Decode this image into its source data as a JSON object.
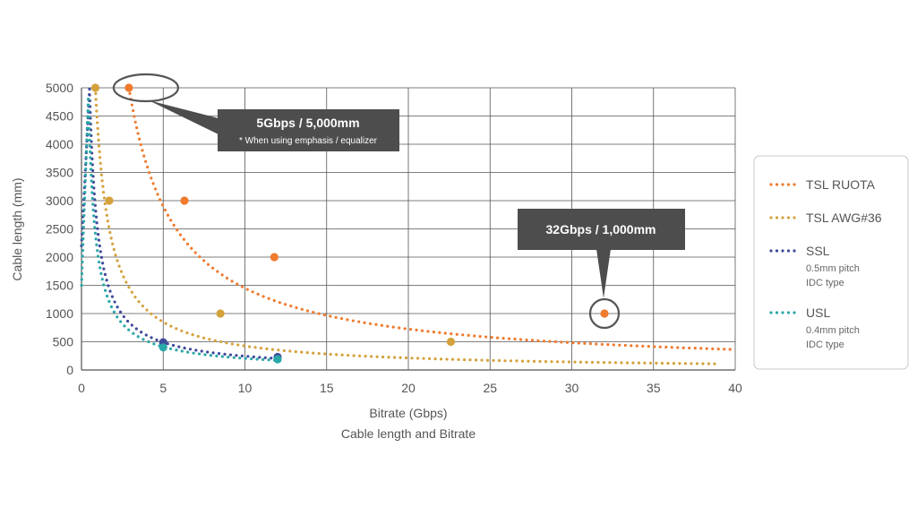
{
  "chart_data": {
    "type": "line",
    "title": "",
    "caption": "Cable length and Bitrate",
    "xlabel": "Bitrate (Gbps)",
    "ylabel": "Cable length (mm)",
    "xlim": [
      0,
      40
    ],
    "ylim": [
      0,
      5000
    ],
    "x_ticks": [
      0,
      5,
      10,
      15,
      20,
      25,
      30,
      35,
      40
    ],
    "y_ticks": [
      0,
      500,
      1000,
      1500,
      2000,
      2500,
      3000,
      3500,
      4000,
      4500,
      5000
    ],
    "grid": true,
    "legend_position": "right",
    "series": [
      {
        "name": "TSL RUOTA",
        "sublabel": [],
        "color": "#f07a2e",
        "style": "dotted",
        "curve_k": 14500,
        "x_range": [
          2.9,
          40
        ],
        "markers": [
          {
            "x": 2.9,
            "y": 5000
          },
          {
            "x": 6.3,
            "y": 3000
          },
          {
            "x": 11.8,
            "y": 2000
          },
          {
            "x": 32,
            "y": 1000
          }
        ]
      },
      {
        "name": "TSL AWG#36",
        "sublabel": [],
        "color": "#d4a23c",
        "style": "dotted",
        "curve_k": 4250,
        "x_range": [
          0.85,
          39
        ],
        "markers": [
          {
            "x": 0.85,
            "y": 5000
          },
          {
            "x": 1.7,
            "y": 3000
          },
          {
            "x": 8.5,
            "y": 1000
          },
          {
            "x": 22.6,
            "y": 500
          }
        ]
      },
      {
        "name": "SSL",
        "sublabel": [
          "0.5mm pitch",
          "IDC type"
        ],
        "color": "#3f4a9a",
        "style": "dotted",
        "curve_k": 2450,
        "x_range": [
          0.02,
          12
        ],
        "markers": [
          {
            "x": 5,
            "y": 490
          },
          {
            "x": 12,
            "y": 230
          }
        ]
      },
      {
        "name": "USL",
        "sublabel": [
          "0.4mm pitch",
          "IDC type"
        ],
        "color": "#2aa7a8",
        "style": "dotted",
        "curve_k": 2050,
        "x_range": [
          0.02,
          12
        ],
        "markers": [
          {
            "x": 5,
            "y": 400
          },
          {
            "x": 12,
            "y": 190
          }
        ]
      }
    ],
    "annotations": [
      {
        "text": "5Gbps / 5,000mm",
        "note": "* When using emphasis / equalizer",
        "x": 2.9,
        "y": 5000
      },
      {
        "text": "32Gbps / 1,000mm",
        "note": "",
        "x": 32,
        "y": 1000
      }
    ]
  }
}
